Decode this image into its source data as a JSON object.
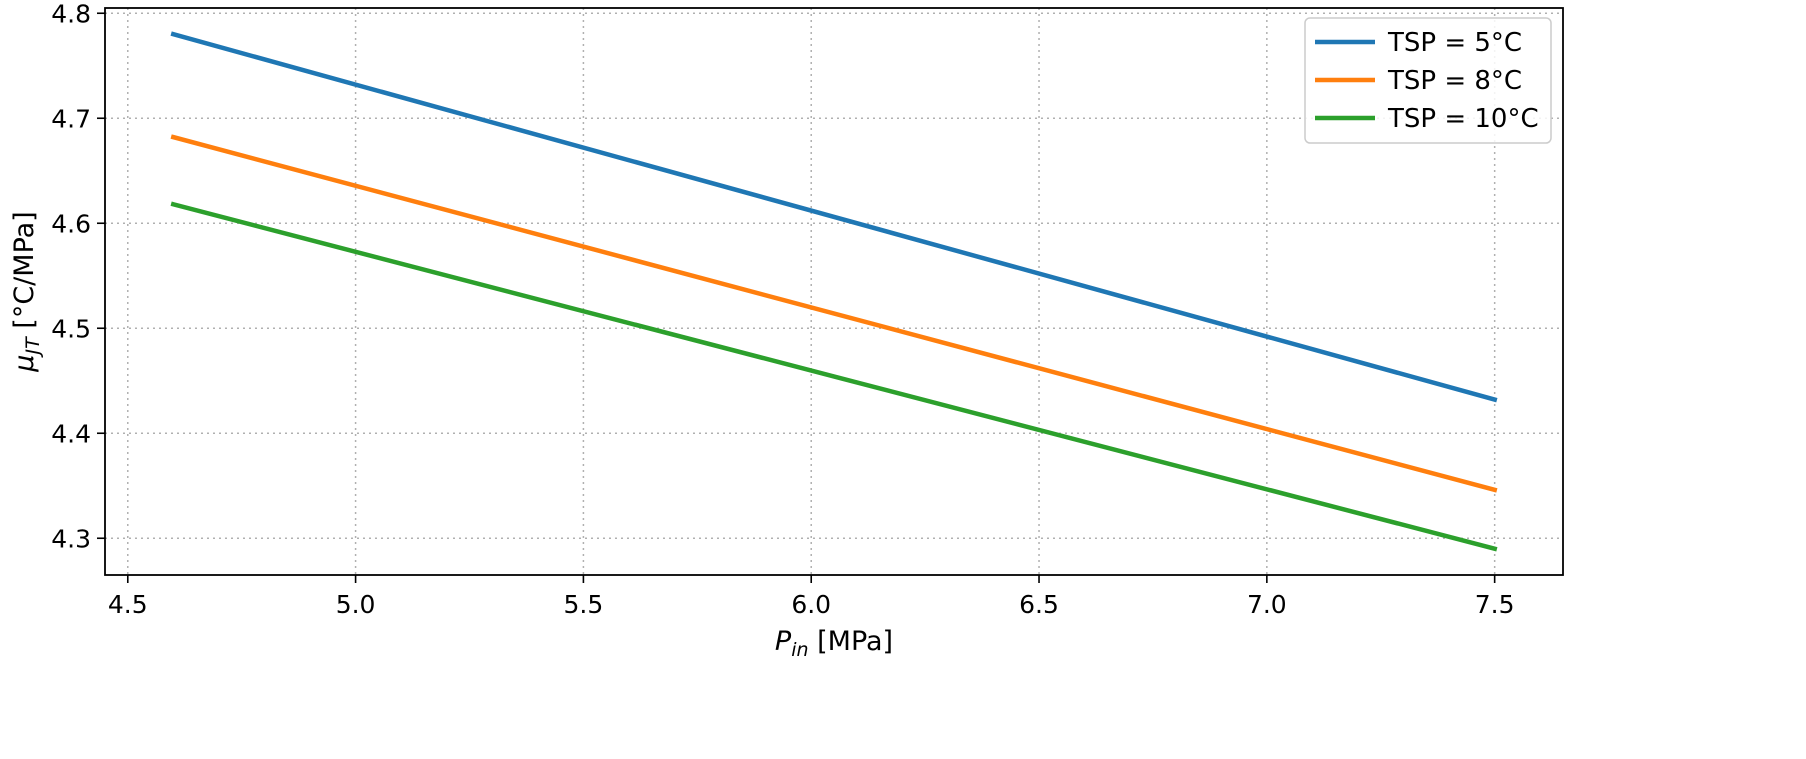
{
  "chart_data": {
    "type": "line",
    "x_axis": {
      "label_symbol": "P",
      "label_sub": "in",
      "label_unit": " [MPa]",
      "lim": [
        4.45,
        7.65
      ],
      "ticks": [
        4.5,
        5.0,
        5.5,
        6.0,
        6.5,
        7.0,
        7.5
      ],
      "tick_labels": [
        "4.5",
        "5.0",
        "5.5",
        "6.0",
        "6.5",
        "7.0",
        "7.5"
      ]
    },
    "y_axis": {
      "label_symbol": "μ",
      "label_sub": "JT",
      "label_unit": " [°C/MPa]",
      "lim": [
        4.265,
        4.805
      ],
      "ticks": [
        4.3,
        4.4,
        4.5,
        4.6,
        4.7,
        4.8
      ],
      "tick_labels": [
        "4.3",
        "4.4",
        "4.5",
        "4.6",
        "4.7",
        "4.8"
      ]
    },
    "grid": true,
    "legend_position": "top-right",
    "series": [
      {
        "name": "TSP = 5°C",
        "color": "#1f77b4",
        "x": [
          4.6,
          7.5
        ],
        "y": [
          4.78,
          4.432
        ]
      },
      {
        "name": "TSP = 8°C",
        "color": "#ff7f0e",
        "x": [
          4.6,
          7.5
        ],
        "y": [
          4.682,
          4.346
        ]
      },
      {
        "name": "TSP = 10°C",
        "color": "#2ca02c",
        "x": [
          4.6,
          7.5
        ],
        "y": [
          4.618,
          4.29
        ]
      }
    ]
  }
}
